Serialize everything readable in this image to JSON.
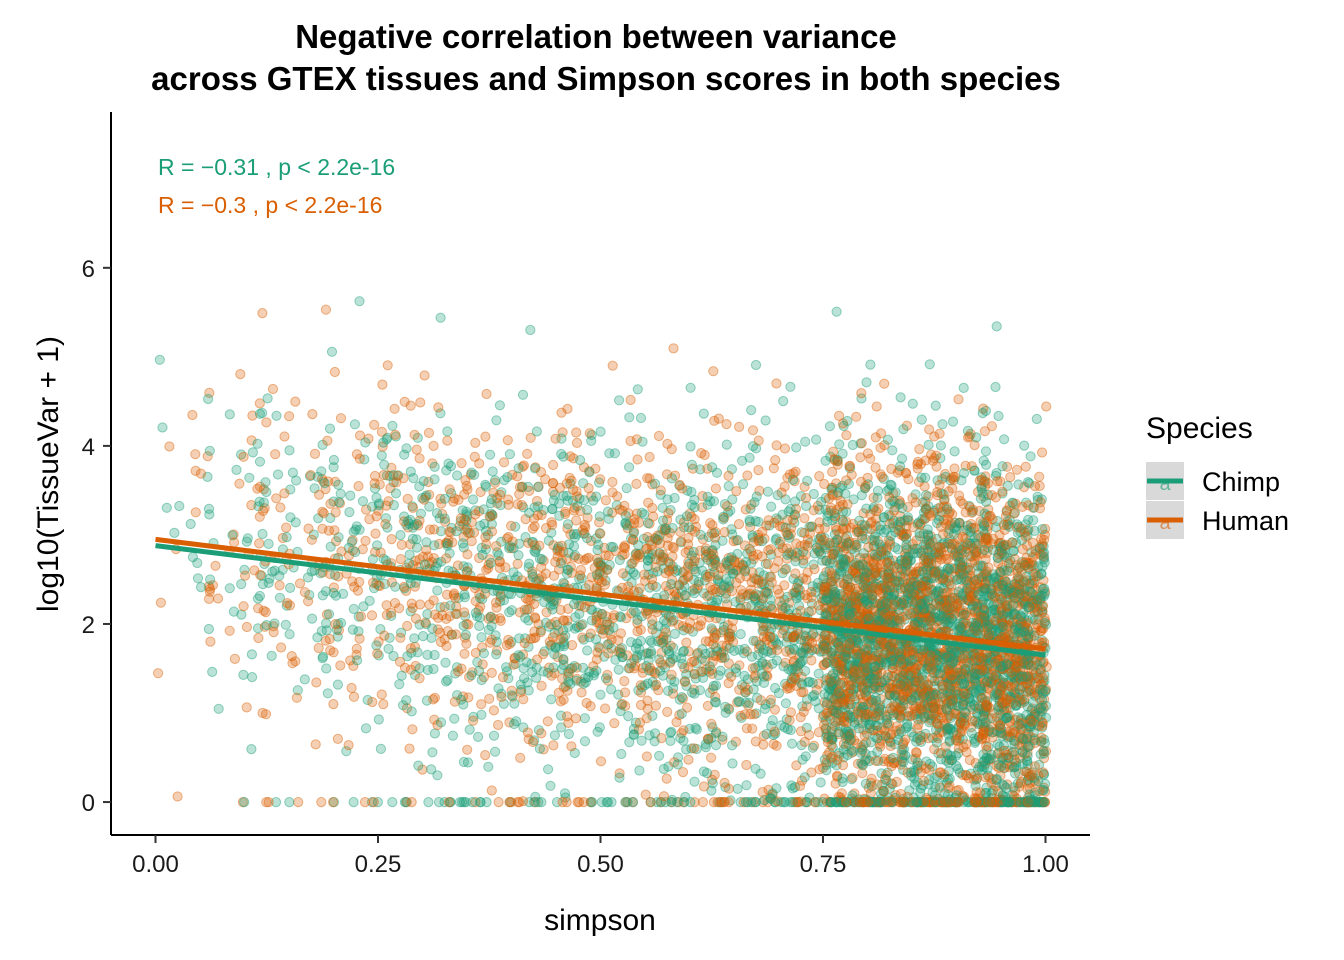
{
  "chart_data": {
    "type": "scatter",
    "title_lines": [
      "Negative correlation between variance",
      "across GTEX tissues and Simpson scores in both species"
    ],
    "xlabel": "simpson",
    "ylabel": "log10(TissueVar + 1)",
    "xlim": [
      -0.05,
      1.05
    ],
    "ylim": [
      -0.37,
      7.75
    ],
    "x_ticks": [
      0.0,
      0.25,
      0.5,
      0.75,
      1.0
    ],
    "x_tick_labels": [
      "0.00",
      "0.25",
      "0.50",
      "0.75",
      "1.00"
    ],
    "y_ticks": [
      0,
      2,
      4,
      6
    ],
    "y_tick_labels": [
      "0",
      "2",
      "4",
      "6"
    ],
    "grid": false,
    "legend": {
      "title": "Species",
      "position": "right",
      "entries": [
        "Chimp",
        "Human"
      ]
    },
    "series": [
      {
        "name": "Chimp",
        "color": "#1b9e77",
        "regression": {
          "x": [
            0.0,
            1.0
          ],
          "y": [
            2.88,
            1.65
          ]
        },
        "annotation": {
          "r": "R = −0.31",
          "p": "p < 2.2e-16"
        }
      },
      {
        "name": "Human",
        "color": "#d95f02",
        "regression": {
          "x": [
            0.0,
            1.0
          ],
          "y": [
            2.95,
            1.72
          ]
        },
        "annotation": {
          "r": "R = −0.3",
          "p": "p < 2.2e-16"
        }
      }
    ]
  }
}
